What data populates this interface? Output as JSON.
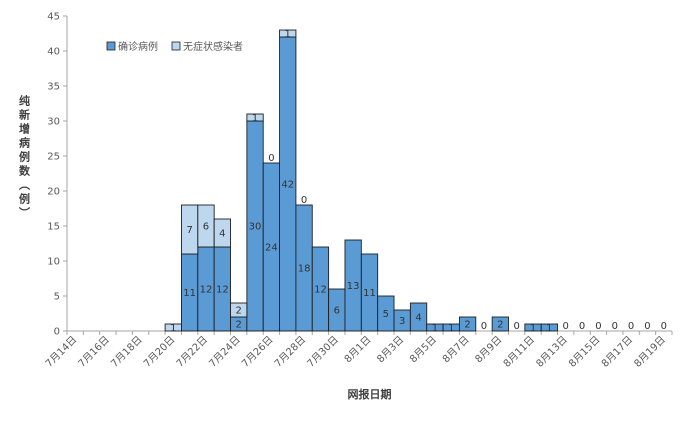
{
  "chart_data": {
    "type": "bar",
    "stacked": true,
    "xlabel": "网报日期",
    "ylabel": "纯新增病例数（例）",
    "ylim": [
      0,
      45
    ],
    "y_ticks": [
      0,
      5,
      10,
      15,
      20,
      25,
      30,
      35,
      40,
      45
    ],
    "grid": false,
    "legend_position": "top-left",
    "categories": [
      "7月14日",
      "7月15日",
      "7月16日",
      "7月17日",
      "7月18日",
      "7月19日",
      "7月20日",
      "7月21日",
      "7月22日",
      "7月23日",
      "7月24日",
      "7月25日",
      "7月26日",
      "7月27日",
      "7月28日",
      "7月29日",
      "7月30日",
      "7月31日",
      "8月1日",
      "8月2日",
      "8月3日",
      "8月4日",
      "8月5日",
      "8月6日",
      "8月7日",
      "8月8日",
      "8月9日",
      "8月10日",
      "8月11日",
      "8月12日",
      "8月13日",
      "8月14日",
      "8月15日",
      "8月16日",
      "8月17日",
      "8月18日",
      "8月19日"
    ],
    "tick_labels": [
      "7月14日",
      "7月16日",
      "7月18日",
      "7月20日",
      "7月22日",
      "7月24日",
      "7月26日",
      "7月28日",
      "7月30日",
      "8月1日",
      "8月3日",
      "8月5日",
      "8月7日",
      "8月9日",
      "8月11日",
      "8月13日",
      "8月15日",
      "8月17日",
      "8月19日"
    ],
    "series": [
      {
        "name": "确诊病例",
        "color": "#5b9bd5",
        "values": [
          0,
          0,
          0,
          0,
          0,
          0,
          0,
          11,
          12,
          12,
          2,
          30,
          24,
          42,
          18,
          12,
          6,
          13,
          11,
          5,
          3,
          4,
          1,
          1,
          2,
          0,
          2,
          0,
          1,
          1,
          0,
          0,
          0,
          0,
          0,
          0,
          0
        ]
      },
      {
        "name": "无症状感染者",
        "color": "#bdd7ee",
        "values": [
          0,
          0,
          0,
          0,
          0,
          0,
          1,
          7,
          6,
          4,
          2,
          1,
          0,
          1,
          0,
          0,
          0,
          0,
          0,
          0,
          0,
          0,
          0,
          0,
          0,
          0,
          0,
          0,
          0,
          0,
          0,
          0,
          0,
          0,
          0,
          0,
          0
        ]
      }
    ],
    "bar_labels": [
      {
        "category": "7月20日",
        "series": "无症状感染者",
        "text": "1"
      },
      {
        "category": "7月21日",
        "series": "确诊病例",
        "text": "11"
      },
      {
        "category": "7月21日",
        "series": "无症状感染者",
        "text": "7"
      },
      {
        "category": "7月22日",
        "series": "确诊病例",
        "text": "12"
      },
      {
        "category": "7月22日",
        "series": "无症状感染者",
        "text": "6"
      },
      {
        "category": "7月23日",
        "series": "确诊病例",
        "text": "12"
      },
      {
        "category": "7月23日",
        "series": "无症状感染者",
        "text": "4"
      },
      {
        "category": "7月24日",
        "series": "确诊病例",
        "text": "2"
      },
      {
        "category": "7月24日",
        "series": "无症状感染者",
        "text": "2"
      },
      {
        "category": "7月25日",
        "series": "确诊病例",
        "text": "30"
      },
      {
        "category": "7月25日",
        "series": "无症状感染者",
        "text": "1"
      },
      {
        "category": "7月26日",
        "series": "确诊病例",
        "text": "24"
      },
      {
        "category": "7月26日",
        "series": "无症状感染者",
        "text": "0"
      },
      {
        "category": "7月27日",
        "series": "确诊病例",
        "text": "42"
      },
      {
        "category": "7月27日",
        "series": "无症状感染者",
        "text": "1"
      },
      {
        "category": "7月28日",
        "series": "确诊病例",
        "text": "18"
      },
      {
        "category": "7月28日",
        "series": "无症状感染者",
        "text": "0"
      },
      {
        "category": "7月29日",
        "series": "确诊病例",
        "text": "12"
      },
      {
        "category": "7月30日",
        "series": "确诊病例",
        "text": "6"
      },
      {
        "category": "7月31日",
        "series": "确诊病例",
        "text": "13"
      },
      {
        "category": "8月1日",
        "series": "确诊病例",
        "text": "11"
      },
      {
        "category": "8月2日",
        "series": "确诊病例",
        "text": "5"
      },
      {
        "category": "8月3日",
        "series": "确诊病例",
        "text": "3"
      },
      {
        "category": "8月4日",
        "series": "确诊病例",
        "text": "4"
      },
      {
        "category": "8月5日",
        "series": "确诊病例",
        "text": "1"
      },
      {
        "category": "8月6日",
        "series": "确诊病例",
        "text": "1"
      },
      {
        "category": "8月7日",
        "series": "确诊病例",
        "text": "2"
      },
      {
        "category": "8月8日",
        "series": "确诊病例",
        "text": "0"
      },
      {
        "category": "8月9日",
        "series": "确诊病例",
        "text": "2"
      },
      {
        "category": "8月10日",
        "series": "确诊病例",
        "text": "0"
      },
      {
        "category": "8月11日",
        "series": "确诊病例",
        "text": "1"
      },
      {
        "category": "8月12日",
        "series": "确诊病例",
        "text": "1"
      },
      {
        "category": "8月13日",
        "series": "确诊病例",
        "text": "0"
      },
      {
        "category": "8月14日",
        "series": "确诊病例",
        "text": "0"
      },
      {
        "category": "8月15日",
        "series": "确诊病例",
        "text": "0"
      },
      {
        "category": "8月16日",
        "series": "确诊病例",
        "text": "0"
      },
      {
        "category": "8月17日",
        "series": "确诊病例",
        "text": "0"
      },
      {
        "category": "8月18日",
        "series": "确诊病例",
        "text": "0"
      },
      {
        "category": "8月19日",
        "series": "确诊病例",
        "text": "0"
      }
    ]
  }
}
